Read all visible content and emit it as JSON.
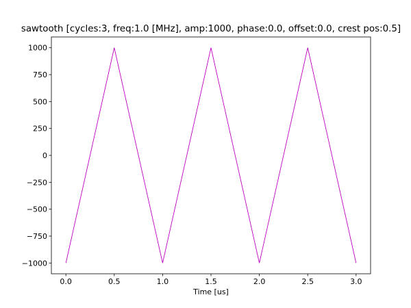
{
  "chart_data": {
    "type": "line",
    "title": "sawtooth [cycles:3, freq:1.0 [MHz], amp:1000, phase:0.0, offset:0.0, crest pos:0.5]",
    "xlabel": "Time [us]",
    "ylabel": "",
    "xlim": [
      -0.15,
      3.15
    ],
    "ylim": [
      -1100,
      1100
    ],
    "x_ticks": [
      0.0,
      0.5,
      1.0,
      1.5,
      2.0,
      2.5,
      3.0
    ],
    "x_tick_labels": [
      "0.0",
      "0.5",
      "1.0",
      "1.5",
      "2.0",
      "2.5",
      "3.0"
    ],
    "y_ticks": [
      -1000,
      -750,
      -500,
      -250,
      0,
      250,
      500,
      750,
      1000
    ],
    "y_tick_labels": [
      "−1000",
      "−750",
      "−500",
      "−250",
      "0",
      "250",
      "500",
      "750",
      "1000"
    ],
    "grid": false,
    "series": [
      {
        "x": [
          0.0,
          0.5,
          1.0,
          1.5,
          2.0,
          2.5,
          3.0
        ],
        "y": [
          -1000,
          1000,
          -1000,
          1000,
          -1000,
          1000,
          -1000
        ],
        "color": "#bf00bf"
      }
    ]
  }
}
